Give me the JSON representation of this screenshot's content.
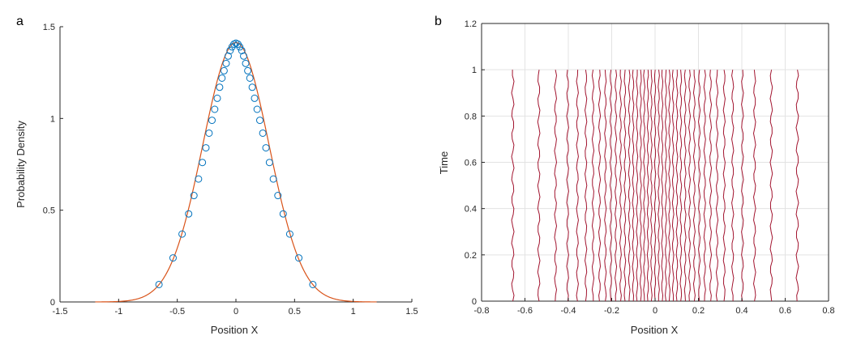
{
  "chart_data": [
    {
      "type": "line",
      "panel_label": "a",
      "xlabel": "Position X",
      "ylabel": "Probability Density",
      "xlim": [
        -1.5,
        1.5
      ],
      "ylim": [
        0,
        1.5
      ],
      "xticks": [
        "-1.5",
        "-1",
        "-0.5",
        "0",
        "0.5",
        "1",
        "1.5"
      ],
      "yticks": [
        "0",
        "0.5",
        "1",
        "1.5"
      ],
      "grid": false,
      "series": [
        {
          "kind": "line",
          "color": "#D95319",
          "sigma": 0.282,
          "peak": 1.414,
          "x_range": [
            -1.2,
            1.2
          ]
        },
        {
          "kind": "markers",
          "marker": "circle",
          "color": "#0072BD",
          "x": [
            -0.656,
            -0.536,
            -0.459,
            -0.403,
            -0.358,
            -0.319,
            -0.286,
            -0.256,
            -0.229,
            -0.204,
            -0.181,
            -0.159,
            -0.139,
            -0.119,
            -0.101,
            -0.083,
            -0.066,
            -0.05,
            -0.033,
            -0.017,
            0.0,
            0.017,
            0.033,
            0.05,
            0.066,
            0.083,
            0.101,
            0.119,
            0.139,
            0.159,
            0.181,
            0.204,
            0.229,
            0.256,
            0.286,
            0.319,
            0.358,
            0.403,
            0.459,
            0.536,
            0.656
          ],
          "y": [
            0.095,
            0.24,
            0.37,
            0.48,
            0.58,
            0.67,
            0.76,
            0.84,
            0.92,
            0.99,
            1.05,
            1.11,
            1.17,
            1.22,
            1.26,
            1.3,
            1.34,
            1.37,
            1.39,
            1.405,
            1.41,
            1.405,
            1.39,
            1.37,
            1.34,
            1.3,
            1.26,
            1.22,
            1.17,
            1.11,
            1.05,
            0.99,
            0.92,
            0.84,
            0.76,
            0.67,
            0.58,
            0.48,
            0.37,
            0.24,
            0.095
          ]
        }
      ]
    },
    {
      "type": "line",
      "panel_label": "b",
      "xlabel": "Position X",
      "ylabel": "Time",
      "xlim": [
        -0.8,
        0.8
      ],
      "ylim": [
        0,
        1.2
      ],
      "xticks": [
        "-0.8",
        "-0.6",
        "-0.4",
        "-0.2",
        "0",
        "0.2",
        "0.4",
        "0.6",
        "0.8"
      ],
      "yticks": [
        "0",
        "0.2",
        "0.4",
        "0.6",
        "0.8",
        "1",
        "1.2"
      ],
      "grid": true,
      "line_color": "#A2142F",
      "t_range": [
        0,
        1
      ],
      "x_positions": [
        -0.656,
        -0.536,
        -0.459,
        -0.403,
        -0.358,
        -0.319,
        -0.286,
        -0.256,
        -0.229,
        -0.204,
        -0.181,
        -0.159,
        -0.139,
        -0.119,
        -0.101,
        -0.083,
        -0.066,
        -0.05,
        -0.033,
        -0.017,
        0.0,
        0.017,
        0.033,
        0.05,
        0.066,
        0.083,
        0.101,
        0.119,
        0.139,
        0.159,
        0.181,
        0.204,
        0.229,
        0.256,
        0.286,
        0.319,
        0.358,
        0.403,
        0.459,
        0.536,
        0.656
      ]
    }
  ]
}
